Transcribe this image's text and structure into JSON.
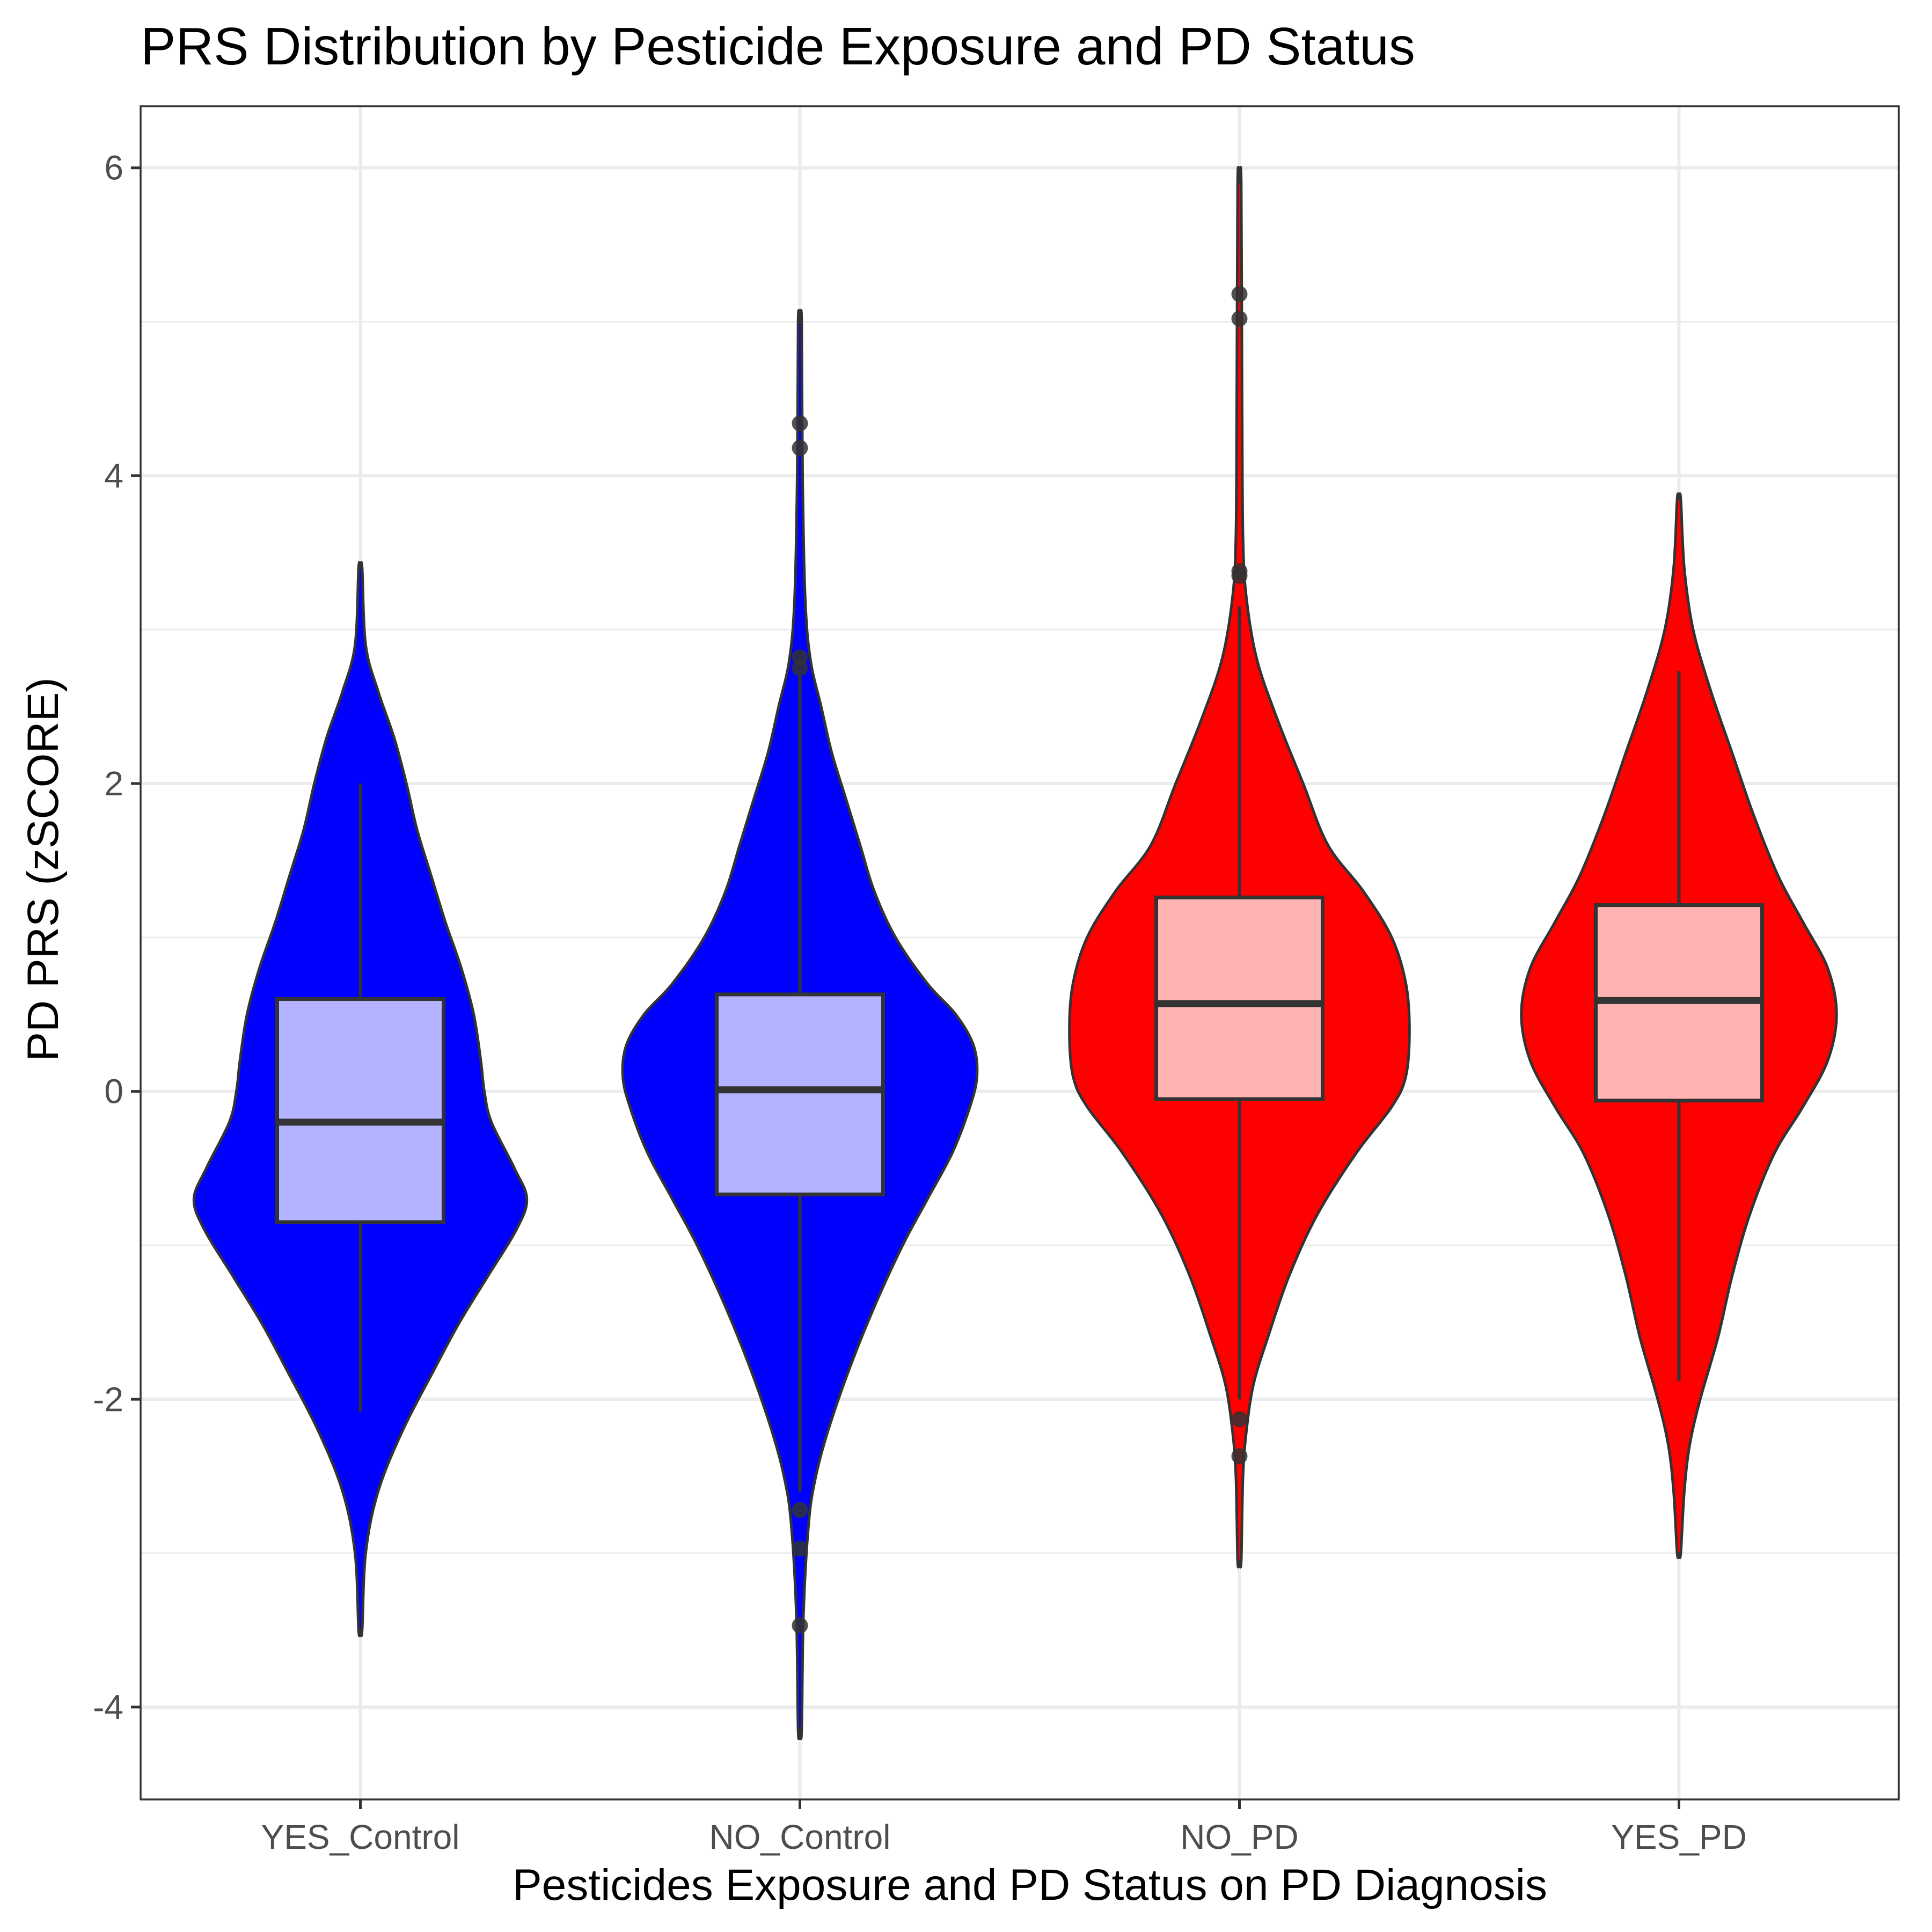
{
  "chart_data": {
    "type": "violin",
    "title": "PRS Distribution by Pesticide Exposure and PD Status",
    "xlabel": "Pesticides Exposure and PD Status  on PD Diagnosis",
    "ylabel": "PD PRS (zSCORE)",
    "ylim": [
      -4.6,
      6.4
    ],
    "y_ticks": [
      -4,
      -2,
      0,
      2,
      4,
      6
    ],
    "grid": true,
    "categories": [
      "YES_Control",
      "NO_Control",
      "NO_PD",
      "YES_PD"
    ],
    "groups": [
      {
        "category": "YES_Control",
        "fill": "#0000ff",
        "box_fill": "#b3b3ff",
        "violin_range": [
          -3.5,
          3.4
        ],
        "violin_profile": [
          [
            -3.5,
            0.01
          ],
          [
            -3.0,
            0.03
          ],
          [
            -2.6,
            0.1
          ],
          [
            -2.2,
            0.24
          ],
          [
            -1.8,
            0.42
          ],
          [
            -1.5,
            0.56
          ],
          [
            -1.2,
            0.72
          ],
          [
            -0.9,
            0.88
          ],
          [
            -0.7,
            0.94
          ],
          [
            -0.5,
            0.87
          ],
          [
            -0.2,
            0.74
          ],
          [
            0.0,
            0.7
          ],
          [
            0.2,
            0.68
          ],
          [
            0.5,
            0.64
          ],
          [
            0.8,
            0.57
          ],
          [
            1.1,
            0.48
          ],
          [
            1.4,
            0.4
          ],
          [
            1.7,
            0.32
          ],
          [
            2.0,
            0.26
          ],
          [
            2.3,
            0.19
          ],
          [
            2.6,
            0.1
          ],
          [
            2.9,
            0.03
          ],
          [
            3.4,
            0.01
          ]
        ],
        "q1": -0.85,
        "median": -0.2,
        "q3": 0.6,
        "whisker_low": -2.08,
        "whisker_high": 2.0,
        "outliers": []
      },
      {
        "category": "NO_Control",
        "fill": "#0000ff",
        "box_fill": "#b3b3ff",
        "violin_range": [
          -4.15,
          5.0
        ],
        "violin_profile": [
          [
            -4.15,
            0.01
          ],
          [
            -3.4,
            0.02
          ],
          [
            -2.8,
            0.05
          ],
          [
            -2.5,
            0.09
          ],
          [
            -2.2,
            0.16
          ],
          [
            -1.8,
            0.28
          ],
          [
            -1.4,
            0.42
          ],
          [
            -1.0,
            0.58
          ],
          [
            -0.7,
            0.72
          ],
          [
            -0.4,
            0.86
          ],
          [
            -0.1,
            0.96
          ],
          [
            0.1,
            1.0
          ],
          [
            0.3,
            0.98
          ],
          [
            0.5,
            0.88
          ],
          [
            0.7,
            0.72
          ],
          [
            1.0,
            0.54
          ],
          [
            1.3,
            0.42
          ],
          [
            1.6,
            0.34
          ],
          [
            1.9,
            0.26
          ],
          [
            2.2,
            0.18
          ],
          [
            2.5,
            0.12
          ],
          [
            2.8,
            0.06
          ],
          [
            3.2,
            0.03
          ],
          [
            4.0,
            0.015
          ],
          [
            5.0,
            0.01
          ]
        ],
        "q1": -0.67,
        "median": 0.01,
        "q3": 0.63,
        "whisker_low": -2.6,
        "whisker_high": 2.7,
        "outliers": [
          4.34,
          4.18,
          2.82,
          2.75,
          -2.72,
          -2.97,
          -3.47
        ]
      },
      {
        "category": "NO_PD",
        "fill": "#ff0000",
        "box_fill": "#ffb3b3",
        "violin_range": [
          -3.05,
          5.9
        ],
        "violin_profile": [
          [
            -3.05,
            0.01
          ],
          [
            -2.5,
            0.02
          ],
          [
            -2.2,
            0.04
          ],
          [
            -1.9,
            0.08
          ],
          [
            -1.6,
            0.16
          ],
          [
            -1.2,
            0.28
          ],
          [
            -0.8,
            0.44
          ],
          [
            -0.4,
            0.66
          ],
          [
            -0.1,
            0.86
          ],
          [
            0.1,
            0.94
          ],
          [
            0.4,
            0.96
          ],
          [
            0.7,
            0.94
          ],
          [
            1.0,
            0.86
          ],
          [
            1.3,
            0.7
          ],
          [
            1.6,
            0.5
          ],
          [
            2.0,
            0.36
          ],
          [
            2.4,
            0.22
          ],
          [
            2.8,
            0.1
          ],
          [
            3.2,
            0.04
          ],
          [
            3.6,
            0.02
          ],
          [
            4.5,
            0.015
          ],
          [
            5.9,
            0.01
          ]
        ],
        "q1": -0.05,
        "median": 0.57,
        "q3": 1.26,
        "whisker_low": -2.0,
        "whisker_high": 3.15,
        "outliers": [
          5.18,
          5.02,
          3.38,
          3.35,
          -2.13,
          -2.37
        ]
      },
      {
        "category": "YES_PD",
        "fill": "#ff0000",
        "box_fill": "#ffb3b3",
        "violin_range": [
          -3.0,
          3.85
        ],
        "violin_profile": [
          [
            -3.0,
            0.01
          ],
          [
            -2.6,
            0.03
          ],
          [
            -2.3,
            0.06
          ],
          [
            -2.0,
            0.12
          ],
          [
            -1.6,
            0.22
          ],
          [
            -1.2,
            0.3
          ],
          [
            -0.8,
            0.4
          ],
          [
            -0.4,
            0.54
          ],
          [
            -0.1,
            0.7
          ],
          [
            0.2,
            0.84
          ],
          [
            0.5,
            0.89
          ],
          [
            0.8,
            0.84
          ],
          [
            1.1,
            0.7
          ],
          [
            1.4,
            0.56
          ],
          [
            1.8,
            0.42
          ],
          [
            2.2,
            0.3
          ],
          [
            2.6,
            0.18
          ],
          [
            3.0,
            0.08
          ],
          [
            3.4,
            0.03
          ],
          [
            3.85,
            0.01
          ]
        ],
        "q1": -0.06,
        "median": 0.59,
        "q3": 1.21,
        "whisker_low": -1.88,
        "whisker_high": 2.73,
        "outliers": []
      }
    ]
  }
}
